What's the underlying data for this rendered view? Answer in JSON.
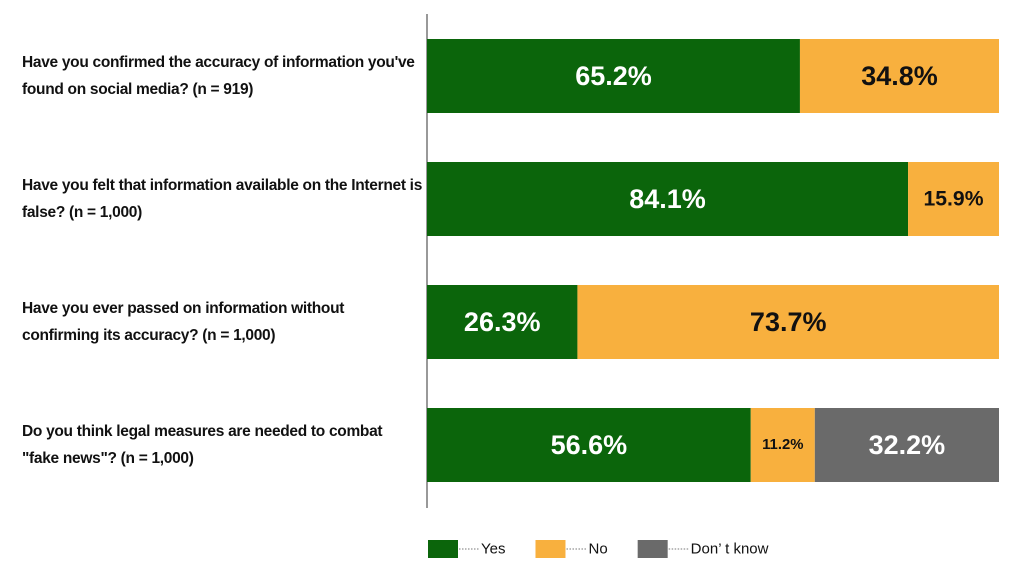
{
  "chart_data": {
    "type": "stacked-bar-horizontal",
    "categories": [
      "Have you confirmed the accuracy of information you've found on social media? (n = 919)",
      "Have you felt that information available on the Internet is false? (n = 1,000)",
      "Have you ever passed on information without confirming its accuracy? (n = 1,000)",
      "Do you think legal measures are needed to combat \"fake news\"? (n = 1,000)"
    ],
    "series": [
      {
        "name": "Yes",
        "color": "#0b650b",
        "label_color": "#ffffff",
        "values": [
          65.2,
          84.1,
          26.3,
          56.6
        ],
        "value_labels": [
          "65.2%",
          "84.1%",
          "26.3%",
          "56.6%"
        ]
      },
      {
        "name": "No",
        "color": "#f8b03e",
        "label_color": "#111111",
        "values": [
          34.8,
          15.9,
          73.7,
          11.2
        ],
        "value_labels": [
          "34.8%",
          "15.9%",
          "73.7%",
          "11.2%"
        ]
      },
      {
        "name": "Don’ t know",
        "color": "#6a6a6a",
        "label_color": "#ffffff",
        "values": [
          null,
          null,
          null,
          32.2
        ],
        "value_labels": [
          null,
          null,
          null,
          "32.2%"
        ]
      }
    ],
    "xlim": [
      0,
      100
    ],
    "legend": "bottom"
  }
}
